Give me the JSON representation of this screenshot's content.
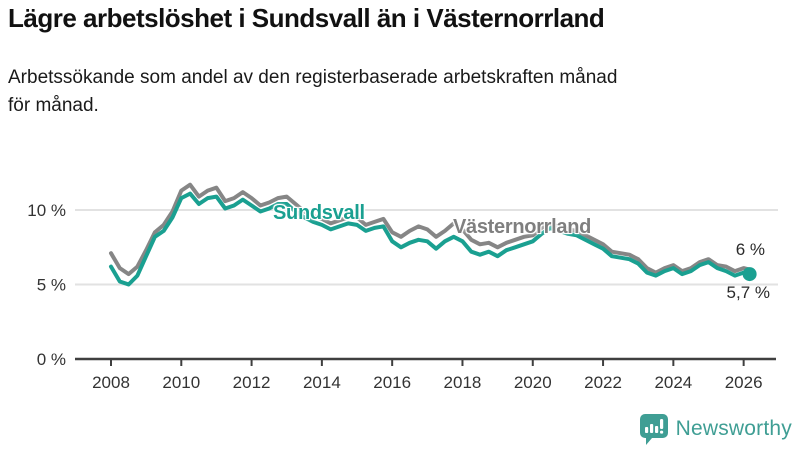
{
  "header": {
    "title": "Lägre arbetslöshet i Sundsvall än i Västernorrland",
    "subtitle_line1": "Arbetssökande som andel av den registerbaserade arbetskraften månad",
    "subtitle_line2": "för månad."
  },
  "chart_data": {
    "type": "line",
    "title": "Lägre arbetslöshet i Sundsvall än i Västernorrland",
    "subtitle": "Arbetssökande som andel av den registerbaserade arbetskraften månad för månad.",
    "unit": "percent of registered labour force",
    "grid": "horizontal",
    "legend_position": "inline-labels",
    "xlim": [
      2007.9,
      2026.8
    ],
    "ylim": [
      0,
      12.5
    ],
    "x_ticks": [
      2008,
      2010,
      2012,
      2014,
      2016,
      2018,
      2020,
      2022,
      2024,
      2026
    ],
    "y_ticks": [
      {
        "value": 0,
        "label": "0 %"
      },
      {
        "value": 5,
        "label": "5 %"
      },
      {
        "value": 10,
        "label": "10 %"
      }
    ],
    "x": [
      2008.0,
      2008.25,
      2008.5,
      2008.75,
      2009.0,
      2009.25,
      2009.5,
      2009.75,
      2010.0,
      2010.25,
      2010.5,
      2010.75,
      2011.0,
      2011.25,
      2011.5,
      2011.75,
      2012.0,
      2012.25,
      2012.5,
      2012.75,
      2013.0,
      2013.25,
      2013.5,
      2013.75,
      2014.0,
      2014.25,
      2014.5,
      2014.75,
      2015.0,
      2015.25,
      2015.5,
      2015.75,
      2016.0,
      2016.25,
      2016.5,
      2016.75,
      2017.0,
      2017.25,
      2017.5,
      2017.75,
      2018.0,
      2018.25,
      2018.5,
      2018.75,
      2019.0,
      2019.25,
      2019.5,
      2019.75,
      2020.0,
      2020.25,
      2020.5,
      2020.75,
      2021.0,
      2021.25,
      2021.5,
      2021.75,
      2022.0,
      2022.25,
      2022.5,
      2022.75,
      2023.0,
      2023.25,
      2023.5,
      2023.75,
      2024.0,
      2024.25,
      2024.5,
      2024.75,
      2025.0,
      2025.25,
      2025.5,
      2025.75,
      2026.0,
      2026.17
    ],
    "series": [
      {
        "name": "Sundsvall",
        "color": "#1aa091",
        "end_label": "5,7 %",
        "end_value": 5.7,
        "values": [
          6.2,
          5.2,
          5.0,
          5.6,
          6.9,
          8.2,
          8.6,
          9.5,
          10.8,
          11.1,
          10.4,
          10.8,
          10.9,
          10.1,
          10.3,
          10.7,
          10.3,
          9.9,
          10.1,
          10.4,
          10.4,
          9.9,
          9.5,
          9.2,
          9.0,
          8.7,
          8.9,
          9.1,
          9.0,
          8.6,
          8.8,
          8.9,
          7.9,
          7.5,
          7.8,
          8.0,
          7.9,
          7.4,
          7.9,
          8.2,
          7.9,
          7.2,
          7.0,
          7.2,
          6.9,
          7.3,
          7.5,
          7.7,
          7.9,
          8.4,
          8.8,
          8.6,
          8.4,
          8.3,
          8.0,
          7.7,
          7.4,
          6.9,
          6.8,
          6.7,
          6.4,
          5.8,
          5.6,
          5.9,
          6.1,
          5.7,
          5.9,
          6.3,
          6.5,
          6.1,
          5.9,
          5.6,
          5.8,
          5.7
        ]
      },
      {
        "name": "Västernorrland",
        "color": "#868686",
        "end_label": "6 %",
        "end_value": 6.0,
        "values": [
          7.1,
          6.1,
          5.7,
          6.2,
          7.3,
          8.5,
          9.0,
          9.9,
          11.3,
          11.7,
          10.9,
          11.3,
          11.5,
          10.6,
          10.8,
          11.2,
          10.8,
          10.3,
          10.5,
          10.8,
          10.9,
          10.4,
          9.9,
          9.6,
          9.4,
          9.1,
          9.3,
          9.5,
          9.5,
          9.0,
          9.2,
          9.4,
          8.5,
          8.2,
          8.6,
          8.9,
          8.7,
          8.2,
          8.6,
          9.1,
          8.7,
          8.0,
          7.7,
          7.8,
          7.5,
          7.8,
          8.0,
          8.2,
          8.3,
          8.8,
          9.1,
          8.9,
          8.7,
          8.6,
          8.3,
          8.0,
          7.7,
          7.2,
          7.1,
          7.0,
          6.7,
          6.1,
          5.8,
          6.1,
          6.3,
          5.9,
          6.1,
          6.5,
          6.7,
          6.3,
          6.2,
          5.9,
          6.1,
          6.0
        ]
      }
    ],
    "colors": {
      "grid": "#e2e2e2",
      "axis": "#3f3f3f",
      "tick_text": "#333333"
    }
  },
  "footer": {
    "brand": "Newsworthy",
    "brand_color": "#3f9e94"
  }
}
